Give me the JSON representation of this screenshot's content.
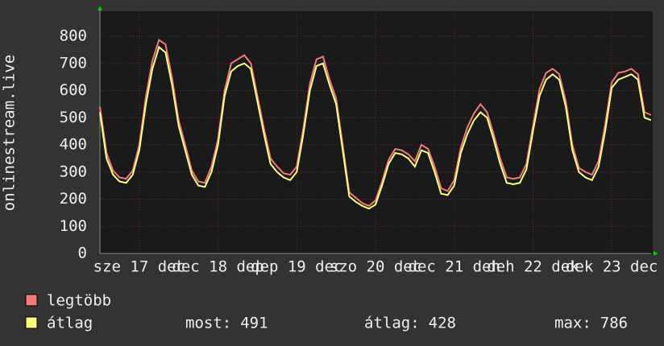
{
  "chart_data": {
    "type": "line",
    "y_label": "onlinestream.live",
    "x": [
      0,
      2,
      4,
      6,
      8,
      10,
      12,
      14,
      16,
      18,
      20,
      22,
      24,
      26,
      28,
      30,
      32,
      34,
      36,
      38,
      40,
      42,
      44,
      46,
      48,
      50,
      52,
      54,
      56,
      58,
      60,
      62,
      64,
      66,
      68,
      70,
      72,
      74,
      76,
      78,
      80,
      82,
      84,
      86,
      88,
      90,
      92,
      94,
      96,
      98,
      100,
      102,
      104,
      106,
      108,
      110,
      112,
      114,
      116,
      118,
      120,
      122,
      124,
      126,
      128,
      130,
      132,
      134,
      136,
      138,
      140,
      142,
      144,
      146,
      148,
      150,
      152,
      154,
      156,
      158,
      160,
      162,
      164,
      166,
      168
    ],
    "xlim": [
      0,
      168
    ],
    "xticks": [
      {
        "value": 12,
        "label": "sze 17 dec"
      },
      {
        "value": 36,
        "label": "dec 18 dep"
      },
      {
        "value": 60,
        "label": "dep 19 dec"
      },
      {
        "value": 84,
        "label": "szo 20 dec"
      },
      {
        "value": 108,
        "label": "dec 21 deh"
      },
      {
        "value": 132,
        "label": "deh 22 dek"
      },
      {
        "value": 156,
        "label": "dek 23 dec"
      }
    ],
    "ylim": [
      0,
      800
    ],
    "yticks": [
      0,
      100,
      200,
      300,
      400,
      500,
      600,
      700,
      800
    ],
    "grid": true,
    "series": [
      {
        "name": "legtöbb",
        "color": "#f47a7a",
        "values": [
          540,
          370,
          305,
          280,
          275,
          305,
          400,
          575,
          710,
          786,
          770,
          645,
          490,
          400,
          305,
          265,
          260,
          320,
          420,
          600,
          700,
          715,
          730,
          700,
          580,
          460,
          350,
          320,
          295,
          290,
          320,
          460,
          625,
          715,
          725,
          640,
          570,
          400,
          225,
          205,
          185,
          175,
          195,
          265,
          345,
          385,
          380,
          365,
          340,
          400,
          385,
          320,
          240,
          230,
          270,
          390,
          465,
          515,
          550,
          520,
          440,
          350,
          280,
          275,
          280,
          330,
          470,
          605,
          665,
          680,
          660,
          560,
          400,
          315,
          300,
          290,
          340,
          475,
          630,
          665,
          670,
          680,
          660,
          520,
          510
        ]
      },
      {
        "name": "átlag",
        "color": "#ffff80",
        "values": [
          520,
          350,
          290,
          265,
          260,
          290,
          380,
          550,
          680,
          760,
          740,
          620,
          470,
          380,
          290,
          250,
          245,
          300,
          400,
          580,
          670,
          690,
          700,
          680,
          560,
          440,
          330,
          300,
          280,
          270,
          300,
          440,
          600,
          690,
          700,
          620,
          550,
          380,
          210,
          190,
          175,
          165,
          180,
          250,
          330,
          370,
          365,
          350,
          320,
          380,
          370,
          300,
          220,
          215,
          250,
          370,
          440,
          490,
          520,
          500,
          420,
          330,
          260,
          255,
          260,
          310,
          450,
          580,
          640,
          660,
          640,
          540,
          380,
          300,
          280,
          270,
          320,
          450,
          610,
          640,
          650,
          660,
          640,
          500,
          491
        ],
        "stats": [
          {
            "label": "most:",
            "value": 491
          },
          {
            "label": "átlag:",
            "value": 428
          },
          {
            "label": "max:",
            "value": 786
          }
        ]
      }
    ]
  }
}
